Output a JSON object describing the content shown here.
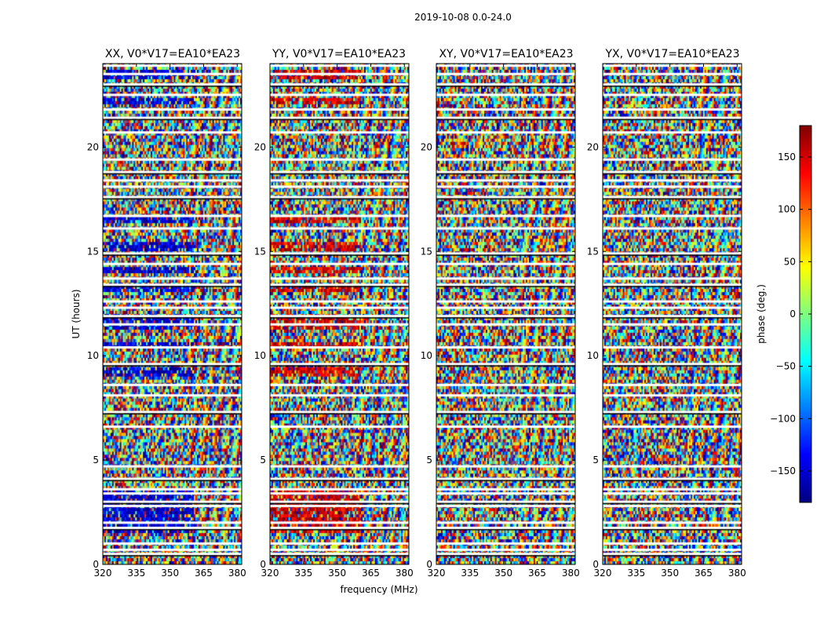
{
  "chart_data": {
    "type": "heatmap",
    "suptitle": "2019-10-08 0.0-24.0",
    "xlabel": "frequency (MHz)",
    "ylabel": "UT (hours)",
    "xlim": [
      320,
      382
    ],
    "ylim": [
      0,
      24
    ],
    "xticks": [
      320,
      335,
      350,
      365,
      380
    ],
    "yticks": [
      0,
      5,
      10,
      15,
      20
    ],
    "panels": [
      {
        "title": "XX, V0*V17=EA10*EA23",
        "pol": "XX",
        "tint": -150,
        "tint_rows": [
          [
            9.0,
            9.5
          ],
          [
            10.3,
            10.6
          ],
          [
            11.2,
            11.8
          ],
          [
            13.0,
            13.3
          ],
          [
            14.0,
            14.3
          ],
          [
            15.0,
            15.5
          ],
          [
            16.3,
            16.6
          ],
          [
            22.0,
            22.3
          ],
          [
            23.2,
            23.7
          ],
          [
            1.5,
            3.6
          ]
        ]
      },
      {
        "title": "YY, V0*V17=EA10*EA23",
        "pol": "YY",
        "tint": 150,
        "tint_rows": [
          [
            9.0,
            9.5
          ],
          [
            10.3,
            10.6
          ],
          [
            11.2,
            11.8
          ],
          [
            13.0,
            13.3
          ],
          [
            14.0,
            14.3
          ],
          [
            15.0,
            15.5
          ],
          [
            16.3,
            16.6
          ],
          [
            22.0,
            22.3
          ],
          [
            23.2,
            23.7
          ],
          [
            1.5,
            3.6
          ]
        ]
      },
      {
        "title": "XY, V0*V17=EA10*EA23",
        "pol": "XY",
        "tint": null,
        "tint_rows": []
      },
      {
        "title": "YX, V0*V17=EA10*EA23",
        "pol": "YX",
        "tint": null,
        "tint_rows": []
      }
    ],
    "flagged_rows_hours": [
      0.5,
      0.7,
      1.0,
      1.75,
      2.0,
      2.8,
      3.0,
      3.4,
      3.6,
      4.1,
      4.7,
      6.6,
      7.3,
      8.1,
      8.6,
      9.6,
      10.4,
      11.5,
      11.9,
      12.3,
      12.6,
      13.4,
      13.7,
      14.4,
      14.9,
      16.1,
      16.7,
      17.6,
      18.1,
      18.4,
      18.8,
      19.4,
      20.7,
      21.4,
      21.8,
      22.5,
      23.0,
      23.5,
      23.9
    ],
    "colorbar": {
      "label": "phase (deg.)",
      "range": [
        -180,
        180
      ],
      "ticks": [
        -150,
        -100,
        -50,
        0,
        50,
        100,
        150
      ],
      "tick_labels": [
        "−150",
        "−100",
        "−50",
        "0",
        "50",
        "100",
        "150"
      ],
      "colormap": "jet"
    }
  }
}
